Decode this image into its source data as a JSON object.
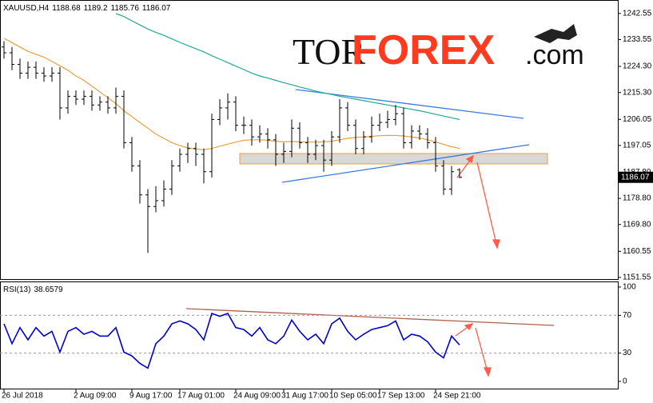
{
  "chart_data": [
    {
      "type": "ohlc",
      "symbol": "XAUUSD,H4",
      "watermark": {
        "tor": "TOR",
        "forex": "FOREX",
        "com": ".com"
      },
      "categories": [
        "26 Jul 2018",
        null,
        null,
        null,
        null,
        null,
        null,
        null,
        null,
        "2 Aug 09:00",
        null,
        null,
        null,
        null,
        null,
        null,
        "9 Aug 17:00",
        null,
        null,
        null,
        null,
        null,
        "17 Aug 01:00",
        null,
        null,
        null,
        null,
        null,
        null,
        "24 Aug 09:00",
        null,
        null,
        null,
        null,
        null,
        "31 Aug 17:00",
        null,
        null,
        null,
        null,
        null,
        "10 Sep 05:00",
        null,
        null,
        null,
        null,
        null,
        "17 Sep 13:00",
        null,
        null,
        null,
        null,
        null,
        null,
        "24 Sep 21:00",
        null,
        null,
        null
      ],
      "open": [
        1231,
        1229,
        1225,
        1222,
        1224,
        1222,
        1221,
        1222,
        1210,
        1214,
        1213,
        1214,
        1211,
        1212,
        1210,
        1214,
        1198,
        1190,
        1180,
        1176,
        1178,
        1182,
        1190,
        1194,
        1196,
        1194,
        1188,
        1206,
        1210,
        1212,
        1204,
        1204,
        1200,
        1201,
        1199,
        1194,
        1195,
        1203,
        1198,
        1194,
        1197,
        1192,
        1200,
        1210,
        1204,
        1196,
        1200,
        1204,
        1205,
        1206,
        1208,
        1198,
        1202,
        1201,
        1198,
        1190,
        1182,
        1188.68
      ],
      "high": [
        1233,
        1231,
        1227,
        1226,
        1226,
        1224,
        1224,
        1224,
        1216,
        1216,
        1216,
        1216,
        1214,
        1214,
        1217,
        1216,
        1200,
        1192,
        1182,
        1183,
        1185,
        1192,
        1196,
        1198,
        1198,
        1196,
        1208,
        1213,
        1215,
        1214,
        1207,
        1206,
        1204,
        1203,
        1201,
        1198,
        1206,
        1205,
        1200,
        1199,
        1199,
        1202,
        1213,
        1212,
        1206,
        1202,
        1207,
        1208,
        1209,
        1211,
        1210,
        1204,
        1204,
        1203,
        1200,
        1192,
        1190,
        1189.2
      ],
      "low": [
        1227,
        1223,
        1220,
        1220,
        1220,
        1219,
        1219,
        1206,
        1208,
        1211,
        1211,
        1209,
        1209,
        1208,
        1208,
        1196,
        1188,
        1177,
        1160,
        1174,
        1176,
        1180,
        1188,
        1191,
        1190,
        1184,
        1186,
        1204,
        1206,
        1202,
        1201,
        1197,
        1198,
        1196,
        1190,
        1191,
        1193,
        1196,
        1191,
        1192,
        1188,
        1190,
        1198,
        1202,
        1194,
        1194,
        1198,
        1202,
        1203,
        1204,
        1196,
        1196,
        1199,
        1196,
        1188,
        1180,
        1180,
        1185.76
      ],
      "close": [
        1229,
        1225,
        1222,
        1224,
        1222,
        1221,
        1222,
        1210,
        1214,
        1213,
        1214,
        1211,
        1212,
        1210,
        1214,
        1198,
        1190,
        1180,
        1176,
        1178,
        1182,
        1190,
        1194,
        1196,
        1194,
        1188,
        1206,
        1210,
        1212,
        1204,
        1204,
        1200,
        1201,
        1199,
        1194,
        1195,
        1203,
        1198,
        1194,
        1197,
        1192,
        1200,
        1210,
        1204,
        1196,
        1200,
        1204,
        1205,
        1206,
        1208,
        1198,
        1202,
        1201,
        1198,
        1190,
        1182,
        1188,
        1186.07
      ],
      "color": "#000000",
      "lines": [
        {
          "color": "#e8a040",
          "values": [
            1234,
            1232.5,
            1231,
            1229.5,
            1228.5,
            1227.5,
            1226,
            1224.5,
            1223,
            1221,
            1219.5,
            1217.5,
            1215.5,
            1213.5,
            1211.5,
            1209,
            1207,
            1205,
            1203,
            1201,
            1199.5,
            1198,
            1197,
            1196.2,
            1195.8,
            1195.6,
            1196,
            1196.8,
            1197.5,
            1198.2,
            1198.8,
            1199,
            1199,
            1198.8,
            1198.5,
            1198.3,
            1198.4,
            1198.3,
            1198.2,
            1198.2,
            1198.3,
            1198.5,
            1199,
            1199.5,
            1199.8,
            1200,
            1200.2,
            1200.4,
            1200.5,
            1200.5,
            1200.3,
            1200,
            1199.6,
            1199,
            1198.3,
            1197.4,
            1196.6,
            1196
          ]
        },
        {
          "color": "#20a898",
          "values": [
            null,
            null,
            null,
            null,
            null,
            null,
            null,
            null,
            null,
            null,
            null,
            null,
            null,
            null,
            1242.5,
            1241.5,
            1240,
            1238.6,
            1237.2,
            1236,
            1235,
            1233.8,
            1232.6,
            1231.5,
            1230.4,
            1229.3,
            1228,
            1226.8,
            1225.6,
            1224.4,
            1223.2,
            1222,
            1221,
            1220.3,
            1219.5,
            1218.7,
            1218,
            1217.2,
            1216.5,
            1215.8,
            1215.2,
            1214.6,
            1214,
            1213.5,
            1213,
            1212.5,
            1212,
            1211.5,
            1211,
            1210.5,
            1210,
            1209.5,
            1209,
            1208.4,
            1207.8,
            1207.2,
            1206.6,
            1206
          ]
        }
      ],
      "ylim": [
        1150.7,
        1247.2
      ],
      "yticks": [
        1242.55,
        1233.55,
        {
          "value": 1224.3,
          "label": "1224.30"
        },
        {
          "value": 1215.3,
          "label": "1215.30"
        },
        1206.05,
        1197.05,
        {
          "value": 1187.8,
          "label": "1187.80"
        },
        {
          "value": 1178.8,
          "label": "1178.80"
        },
        {
          "value": 1169.8,
          "label": "1169.80"
        },
        1160.55,
        1151.55
      ]
    },
    {
      "type": "line",
      "title": "RSI(13)",
      "color": "#0000cc",
      "values": [
        61,
        40,
        57,
        44,
        57,
        48,
        53,
        31,
        53,
        57,
        50,
        53,
        48,
        48,
        57,
        31,
        27,
        19,
        14,
        40,
        48,
        61,
        64,
        61,
        55,
        44,
        72,
        69,
        72,
        57,
        55,
        48,
        57,
        44,
        40,
        48,
        65,
        53,
        44,
        50,
        40,
        61,
        67,
        53,
        44,
        50,
        55,
        57,
        59,
        64,
        44,
        50,
        48,
        42,
        31,
        25,
        48,
        38.6579
      ],
      "ylim": [
        -8.5,
        105.9
      ],
      "yticks": [
        100,
        70,
        30,
        0
      ],
      "levels": [
        70,
        30
      ]
    }
  ]
}
